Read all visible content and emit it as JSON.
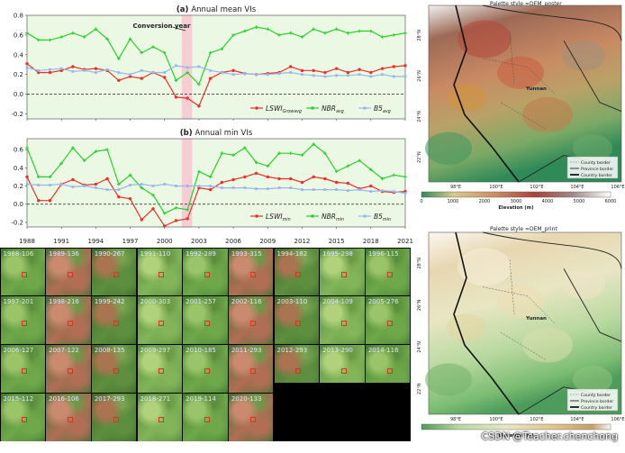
{
  "chart_data": [
    {
      "type": "line",
      "title": "(a) Annual mean VIs",
      "annotation": "Conversion year",
      "x": [
        1988,
        1989,
        1990,
        1991,
        1992,
        1993,
        1994,
        1995,
        1996,
        1997,
        1998,
        1999,
        2000,
        2001,
        2002,
        2003,
        2004,
        2005,
        2006,
        2007,
        2008,
        2009,
        2010,
        2011,
        2012,
        2013,
        2014,
        2015,
        2016,
        2017,
        2018,
        2019,
        2020,
        2021
      ],
      "xticks": [
        "1988",
        "1991",
        "1994",
        "1997",
        "2000",
        "2003",
        "2006",
        "2009",
        "2012",
        "2015",
        "2018",
        "2021"
      ],
      "yticks": [
        "0.8",
        "0.6",
        "0.4",
        "0.2",
        "0.0",
        "-0.2"
      ],
      "ylim": [
        -0.25,
        0.8
      ],
      "series": [
        {
          "name": "LSWI",
          "sub": "Growavg",
          "color": "#e8312a",
          "values": [
            0.31,
            0.22,
            0.22,
            0.24,
            0.28,
            0.25,
            0.26,
            0.24,
            0.14,
            0.18,
            0.16,
            0.22,
            0.17,
            -0.03,
            -0.04,
            -0.12,
            0.16,
            0.22,
            0.24,
            0.21,
            0.2,
            0.21,
            0.22,
            0.28,
            0.24,
            0.24,
            0.22,
            0.26,
            0.22,
            0.25,
            0.22,
            0.26,
            0.28,
            0.29
          ]
        },
        {
          "name": "NBR",
          "sub": "avg",
          "color": "#2bd12b",
          "values": [
            0.62,
            0.55,
            0.55,
            0.58,
            0.62,
            0.58,
            0.66,
            0.56,
            0.36,
            0.56,
            0.42,
            0.48,
            0.42,
            0.14,
            0.22,
            0.1,
            0.42,
            0.46,
            0.6,
            0.64,
            0.68,
            0.66,
            0.6,
            0.62,
            0.58,
            0.66,
            0.62,
            0.66,
            0.62,
            0.64,
            0.64,
            0.58,
            0.6,
            0.62
          ]
        },
        {
          "name": "B5",
          "sub": "avg",
          "color": "#9ab6ee",
          "values": [
            0.27,
            0.24,
            0.25,
            0.26,
            0.23,
            0.24,
            0.22,
            0.25,
            0.22,
            0.2,
            0.24,
            0.22,
            0.22,
            0.29,
            0.27,
            0.28,
            0.24,
            0.22,
            0.2,
            0.21,
            0.2,
            0.2,
            0.21,
            0.22,
            0.2,
            0.19,
            0.18,
            0.19,
            0.19,
            0.2,
            0.18,
            0.2,
            0.18,
            0.18
          ]
        }
      ]
    },
    {
      "type": "line",
      "title": "(b) Annual min VIs",
      "x": [
        1988,
        1989,
        1990,
        1991,
        1992,
        1993,
        1994,
        1995,
        1996,
        1997,
        1998,
        1999,
        2000,
        2001,
        2002,
        2003,
        2004,
        2005,
        2006,
        2007,
        2008,
        2009,
        2010,
        2011,
        2012,
        2013,
        2014,
        2015,
        2016,
        2017,
        2018,
        2019,
        2020,
        2021
      ],
      "xticks": [
        "1988",
        "1991",
        "1994",
        "1997",
        "2000",
        "2003",
        "2006",
        "2009",
        "2012",
        "2015",
        "2018",
        "2021"
      ],
      "yticks": [
        "0.6",
        "0.4",
        "0.2",
        "0.0",
        "-0.2"
      ],
      "ylim": [
        -0.25,
        0.72
      ],
      "series": [
        {
          "name": "LSWI",
          "sub": "min",
          "color": "#e8312a",
          "values": [
            0.3,
            0.04,
            0.04,
            0.22,
            0.27,
            0.21,
            0.22,
            0.28,
            0.08,
            0.06,
            -0.17,
            -0.05,
            -0.24,
            -0.18,
            -0.16,
            0.18,
            0.16,
            0.24,
            0.27,
            0.3,
            0.34,
            0.3,
            0.28,
            0.28,
            0.24,
            0.3,
            0.28,
            0.24,
            0.23,
            0.17,
            0.2,
            0.14,
            0.13,
            0.14
          ]
        },
        {
          "name": "NBR",
          "sub": "min",
          "color": "#2bd12b",
          "values": [
            0.62,
            0.3,
            0.3,
            0.45,
            0.62,
            0.48,
            0.58,
            0.6,
            0.22,
            0.32,
            0.18,
            0.1,
            -0.1,
            -0.04,
            -0.06,
            0.36,
            0.3,
            0.56,
            0.54,
            0.62,
            0.46,
            0.42,
            0.56,
            0.56,
            0.54,
            0.66,
            0.56,
            0.36,
            0.42,
            0.48,
            0.38,
            0.28,
            0.32,
            0.3
          ]
        },
        {
          "name": "B5",
          "sub": "min",
          "color": "#9ab6ee",
          "values": [
            0.22,
            0.21,
            0.21,
            0.22,
            0.19,
            0.2,
            0.18,
            0.16,
            0.16,
            0.21,
            0.22,
            0.2,
            0.22,
            0.2,
            0.2,
            0.2,
            0.2,
            0.18,
            0.18,
            0.18,
            0.17,
            0.17,
            0.18,
            0.18,
            0.16,
            0.16,
            0.16,
            0.16,
            0.15,
            0.16,
            0.14,
            0.15,
            0.14,
            0.12
          ]
        }
      ]
    }
  ],
  "mosaic": {
    "tiles": [
      "1988-106",
      "1989-136",
      "1990-267",
      "1991-110",
      "1992-289",
      "1993-315",
      "1994-182",
      "1995-298",
      "1996-115",
      "1997-201",
      "1998-216",
      "1999-242",
      "2000-303",
      "2001-257",
      "2002-116",
      "2003-110",
      "2004-109",
      "2005-276",
      "2006-127",
      "2007-122",
      "2008-135",
      "2009-297",
      "2010-185",
      "2011-293",
      "2012-293",
      "2013-290",
      "2014-116",
      "2015-112",
      "2016-106",
      "2017-293",
      "2018-271",
      "2019-114",
      "2020-133"
    ]
  },
  "maps": [
    {
      "title": "Palette style =DEM_poster",
      "place": "Yunnan",
      "lat_labels": [
        "28°N",
        "26°N",
        "24°N",
        "22°N"
      ],
      "lon_labels": [
        "98°E",
        "100°E",
        "102°E",
        "104°E",
        "106°E"
      ],
      "legend": [
        "County border",
        "Province border",
        "Country border"
      ],
      "colorbar_ticks": [
        "0",
        "1000",
        "2000",
        "3000",
        "4000",
        "5000",
        "6000"
      ],
      "colorbar_label": "Elevation (m)"
    },
    {
      "title": "Palette style =DEM_print",
      "place": "Yunnan",
      "lat_labels": [
        "28°N",
        "26°N",
        "24°N",
        "22°N"
      ],
      "lon_labels": [
        "98°E",
        "100°E",
        "102°E",
        "104°E",
        "106°E"
      ],
      "legend": [
        "County border",
        "Province border",
        "Country border"
      ],
      "colorbar_label": "Elevation (m)"
    }
  ],
  "watermark": "CSDN @Teacher.chenchong"
}
